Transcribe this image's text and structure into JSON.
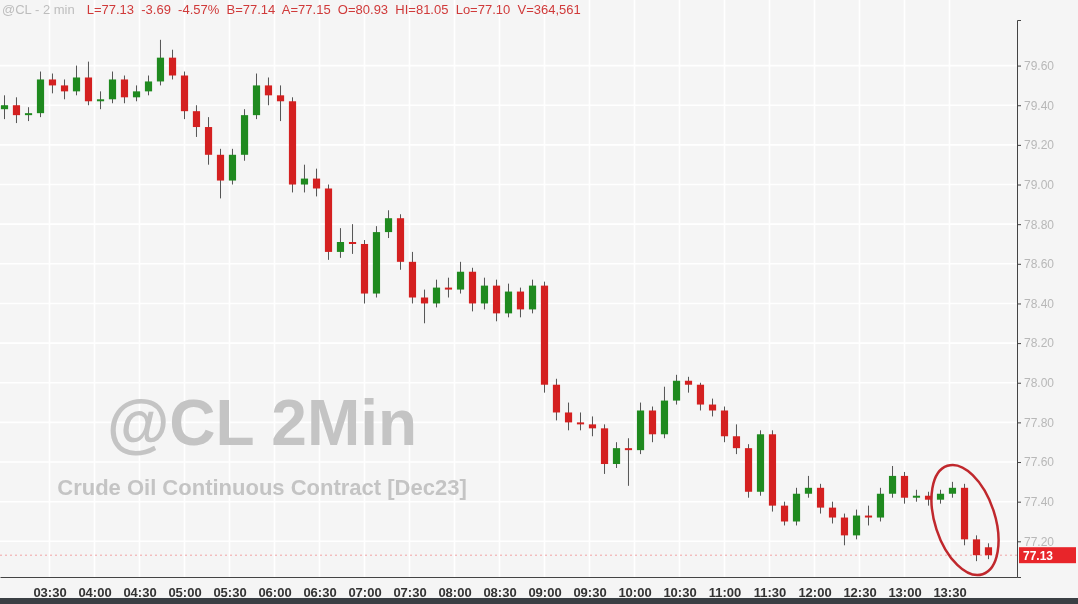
{
  "chart_data": {
    "type": "candlestick",
    "title": "@CL - 2 min",
    "subtitle": "L=77.13  -3.69  -4.57%  B=77.14  A=77.15  O=80.93  HI=81.05  Lo=77.10  V=364,561",
    "annotations": [
      "@CL 2Min",
      "Crude Oil Continuous Contract [Dec23]"
    ],
    "x": [
      3.0,
      3.133,
      3.267,
      3.4,
      3.533,
      3.667,
      3.8,
      3.933,
      4.067,
      4.2,
      4.333,
      4.467,
      4.6,
      4.733,
      4.867,
      5.0,
      5.133,
      5.267,
      5.4,
      5.533,
      5.667,
      5.8,
      5.933,
      6.067,
      6.2,
      6.333,
      6.467,
      6.6,
      6.733,
      6.867,
      7.0,
      7.133,
      7.267,
      7.4,
      7.533,
      7.667,
      7.8,
      7.933,
      8.067,
      8.2,
      8.333,
      8.467,
      8.6,
      8.733,
      8.867,
      9.0,
      9.133,
      9.267,
      9.4,
      9.533,
      9.667,
      9.8,
      9.933,
      10.067,
      10.2,
      10.333,
      10.467,
      10.6,
      10.733,
      10.867,
      11.0,
      11.133,
      11.267,
      11.4,
      11.533,
      11.667,
      11.8,
      11.933,
      12.067,
      12.2,
      12.333,
      12.467,
      12.6,
      12.733,
      12.867,
      13.0,
      13.133,
      13.267,
      13.4,
      13.533,
      13.667,
      13.8,
      13.933
    ],
    "ohlc": [
      [
        79.38,
        79.45,
        79.33,
        79.4
      ],
      [
        79.4,
        79.44,
        79.31,
        79.35
      ],
      [
        79.35,
        79.39,
        79.32,
        79.36
      ],
      [
        79.36,
        79.57,
        79.34,
        79.53
      ],
      [
        79.53,
        79.56,
        79.46,
        79.5
      ],
      [
        79.5,
        79.53,
        79.43,
        79.47
      ],
      [
        79.47,
        79.6,
        79.45,
        79.54
      ],
      [
        79.54,
        79.62,
        79.4,
        79.42
      ],
      [
        79.42,
        79.47,
        79.38,
        79.43
      ],
      [
        79.43,
        79.57,
        79.41,
        79.53
      ],
      [
        79.53,
        79.55,
        79.41,
        79.44
      ],
      [
        79.44,
        79.5,
        79.42,
        79.47
      ],
      [
        79.47,
        79.55,
        79.45,
        79.52
      ],
      [
        79.52,
        79.73,
        79.5,
        79.64
      ],
      [
        79.64,
        79.68,
        79.53,
        79.55
      ],
      [
        79.55,
        79.57,
        79.33,
        79.37
      ],
      [
        79.37,
        79.4,
        79.24,
        79.29
      ],
      [
        79.29,
        79.34,
        79.1,
        79.15
      ],
      [
        79.15,
        79.18,
        78.93,
        79.02
      ],
      [
        79.02,
        79.18,
        79.0,
        79.15
      ],
      [
        79.15,
        79.38,
        79.12,
        79.35
      ],
      [
        79.35,
        79.56,
        79.33,
        79.5
      ],
      [
        79.5,
        79.54,
        79.4,
        79.45
      ],
      [
        79.45,
        79.5,
        79.32,
        79.42
      ],
      [
        79.42,
        79.44,
        78.96,
        79.0
      ],
      [
        79.0,
        79.1,
        78.96,
        79.03
      ],
      [
        79.03,
        79.08,
        78.94,
        78.98
      ],
      [
        78.98,
        79.0,
        78.62,
        78.66
      ],
      [
        78.66,
        78.78,
        78.63,
        78.71
      ],
      [
        78.71,
        78.8,
        78.65,
        78.7
      ],
      [
        78.7,
        78.72,
        78.4,
        78.45
      ],
      [
        78.45,
        78.79,
        78.43,
        78.76
      ],
      [
        78.76,
        78.87,
        78.73,
        78.83
      ],
      [
        78.83,
        78.85,
        78.57,
        78.61
      ],
      [
        78.61,
        78.66,
        78.4,
        78.43
      ],
      [
        78.43,
        78.47,
        78.3,
        78.4
      ],
      [
        78.4,
        78.52,
        78.38,
        78.48
      ],
      [
        78.48,
        78.53,
        78.43,
        78.47
      ],
      [
        78.47,
        78.61,
        78.45,
        78.56
      ],
      [
        78.56,
        78.58,
        78.36,
        78.4
      ],
      [
        78.4,
        78.53,
        78.37,
        78.49
      ],
      [
        78.49,
        78.52,
        78.31,
        78.35
      ],
      [
        78.35,
        78.5,
        78.33,
        78.46
      ],
      [
        78.46,
        78.48,
        78.33,
        78.37
      ],
      [
        78.37,
        78.52,
        78.35,
        78.49
      ],
      [
        78.49,
        78.51,
        77.95,
        77.99
      ],
      [
        77.99,
        78.02,
        77.81,
        77.85
      ],
      [
        77.85,
        77.9,
        77.76,
        77.8
      ],
      [
        77.8,
        77.85,
        77.76,
        77.79
      ],
      [
        77.79,
        77.83,
        77.73,
        77.77
      ],
      [
        77.77,
        77.79,
        77.54,
        77.59
      ],
      [
        77.59,
        77.7,
        77.57,
        77.67
      ],
      [
        77.67,
        77.72,
        77.48,
        77.66
      ],
      [
        77.66,
        77.9,
        77.64,
        77.86
      ],
      [
        77.86,
        77.88,
        77.7,
        77.74
      ],
      [
        77.74,
        77.98,
        77.72,
        77.91
      ],
      [
        77.91,
        78.04,
        77.89,
        78.01
      ],
      [
        78.01,
        78.03,
        77.95,
        77.99
      ],
      [
        77.99,
        78.0,
        77.86,
        77.89
      ],
      [
        77.89,
        77.92,
        77.83,
        77.86
      ],
      [
        77.86,
        77.88,
        77.7,
        77.73
      ],
      [
        77.73,
        77.79,
        77.64,
        77.67
      ],
      [
        77.67,
        77.69,
        77.42,
        77.45
      ],
      [
        77.45,
        77.76,
        77.43,
        77.74
      ],
      [
        77.74,
        77.76,
        77.35,
        77.38
      ],
      [
        77.38,
        77.4,
        77.28,
        77.3
      ],
      [
        77.3,
        77.47,
        77.28,
        77.44
      ],
      [
        77.44,
        77.53,
        77.42,
        77.47
      ],
      [
        77.47,
        77.49,
        77.34,
        77.37
      ],
      [
        77.37,
        77.4,
        77.29,
        77.32
      ],
      [
        77.32,
        77.34,
        77.18,
        77.23
      ],
      [
        77.23,
        77.36,
        77.21,
        77.33
      ],
      [
        77.33,
        77.38,
        77.28,
        77.32
      ],
      [
        77.32,
        77.47,
        77.3,
        77.44
      ],
      [
        77.44,
        77.58,
        77.42,
        77.53
      ],
      [
        77.53,
        77.55,
        77.39,
        77.42
      ],
      [
        77.42,
        77.46,
        77.4,
        77.43
      ],
      [
        77.43,
        77.45,
        77.38,
        77.41
      ],
      [
        77.41,
        77.46,
        77.39,
        77.44
      ],
      [
        77.44,
        77.5,
        77.42,
        77.47
      ],
      [
        77.47,
        77.49,
        77.18,
        77.21
      ],
      [
        77.21,
        77.23,
        77.1,
        77.13
      ],
      [
        77.17,
        77.19,
        77.11,
        77.13
      ]
    ],
    "xlim": [
      2.95,
      14.25
    ],
    "ylim": [
      77.02,
      79.83
    ],
    "xticks": [
      {
        "value": 3.5,
        "label": "03:30"
      },
      {
        "value": 4,
        "label": "04:00"
      },
      {
        "value": 4.5,
        "label": "04:30"
      },
      {
        "value": 5,
        "label": "05:00"
      },
      {
        "value": 5.5,
        "label": "05:30"
      },
      {
        "value": 6,
        "label": "06:00"
      },
      {
        "value": 6.5,
        "label": "06:30"
      },
      {
        "value": 7,
        "label": "07:00"
      },
      {
        "value": 7.5,
        "label": "07:30"
      },
      {
        "value": 8,
        "label": "08:00"
      },
      {
        "value": 8.5,
        "label": "08:30"
      },
      {
        "value": 9,
        "label": "09:00"
      },
      {
        "value": 9.5,
        "label": "09:30"
      },
      {
        "value": 10,
        "label": "10:00"
      },
      {
        "value": 10.5,
        "label": "10:30"
      },
      {
        "value": 11,
        "label": "11:00"
      },
      {
        "value": 11.5,
        "label": "11:30"
      },
      {
        "value": 12,
        "label": "12:00"
      },
      {
        "value": 12.5,
        "label": "12:30"
      },
      {
        "value": 13,
        "label": "13:00"
      },
      {
        "value": 13.5,
        "label": "13:30"
      }
    ],
    "yticks": [
      {
        "value": 77.2,
        "label": "77.20"
      },
      {
        "value": 77.4,
        "label": "77.40"
      },
      {
        "value": 77.6,
        "label": "77.60"
      },
      {
        "value": 77.8,
        "label": "77.80"
      },
      {
        "value": 78,
        "label": "78.00"
      },
      {
        "value": 78.2,
        "label": "78.20"
      },
      {
        "value": 78.4,
        "label": "78.40"
      },
      {
        "value": 78.6,
        "label": "78.60"
      },
      {
        "value": 78.8,
        "label": "78.80"
      },
      {
        "value": 79,
        "label": "79.00"
      },
      {
        "value": 79.2,
        "label": "79.20"
      },
      {
        "value": 79.4,
        "label": "79.40"
      },
      {
        "value": 79.6,
        "label": "79.60"
      }
    ],
    "grid": true,
    "ref_lines": [
      {
        "axis": "y",
        "value": 77.13,
        "label": "77.13",
        "color": "#e8252a"
      }
    ]
  }
}
